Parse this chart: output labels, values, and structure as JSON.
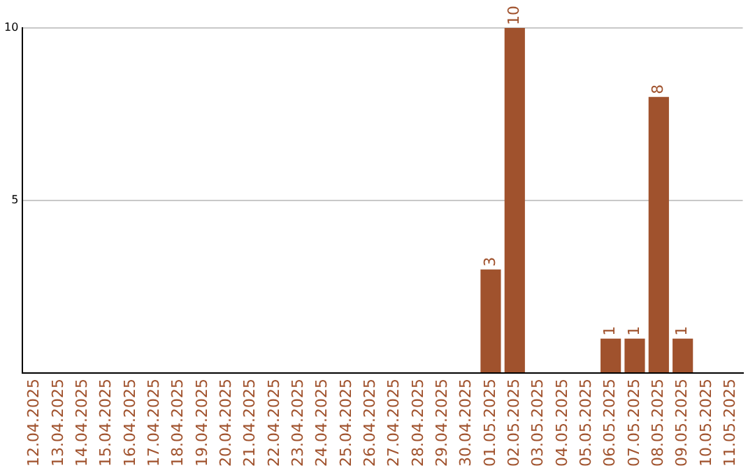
{
  "chart_data": {
    "type": "bar",
    "categories": [
      "12.04.2025",
      "13.04.2025",
      "14.04.2025",
      "15.04.2025",
      "16.04.2025",
      "17.04.2025",
      "18.04.2025",
      "19.04.2025",
      "20.04.2025",
      "21.04.2025",
      "22.04.2025",
      "23.04.2025",
      "24.04.2025",
      "25.04.2025",
      "26.04.2025",
      "27.04.2025",
      "28.04.2025",
      "29.04.2025",
      "30.04.2025",
      "01.05.2025",
      "02.05.2025",
      "03.05.2025",
      "04.05.2025",
      "05.05.2025",
      "06.05.2025",
      "07.05.2025",
      "08.05.2025",
      "09.05.2025",
      "10.05.2025",
      "11.05.2025"
    ],
    "values": [
      0,
      0,
      0,
      0,
      0,
      0,
      0,
      0,
      0,
      0,
      0,
      0,
      0,
      0,
      0,
      0,
      0,
      0,
      0,
      3,
      10,
      0,
      0,
      0,
      1,
      1,
      8,
      1,
      0,
      0
    ],
    "value_labels": [
      null,
      null,
      null,
      null,
      null,
      null,
      null,
      null,
      null,
      null,
      null,
      null,
      null,
      null,
      null,
      null,
      null,
      null,
      null,
      "3",
      "10",
      null,
      null,
      null,
      "1",
      "1",
      "8",
      "1",
      null,
      null
    ],
    "color": "#a0522d",
    "ylim": [
      0,
      10
    ],
    "yticks": [
      {
        "value": 0,
        "label": null
      },
      5,
      10
    ],
    "grid": "y",
    "legend": false
  }
}
